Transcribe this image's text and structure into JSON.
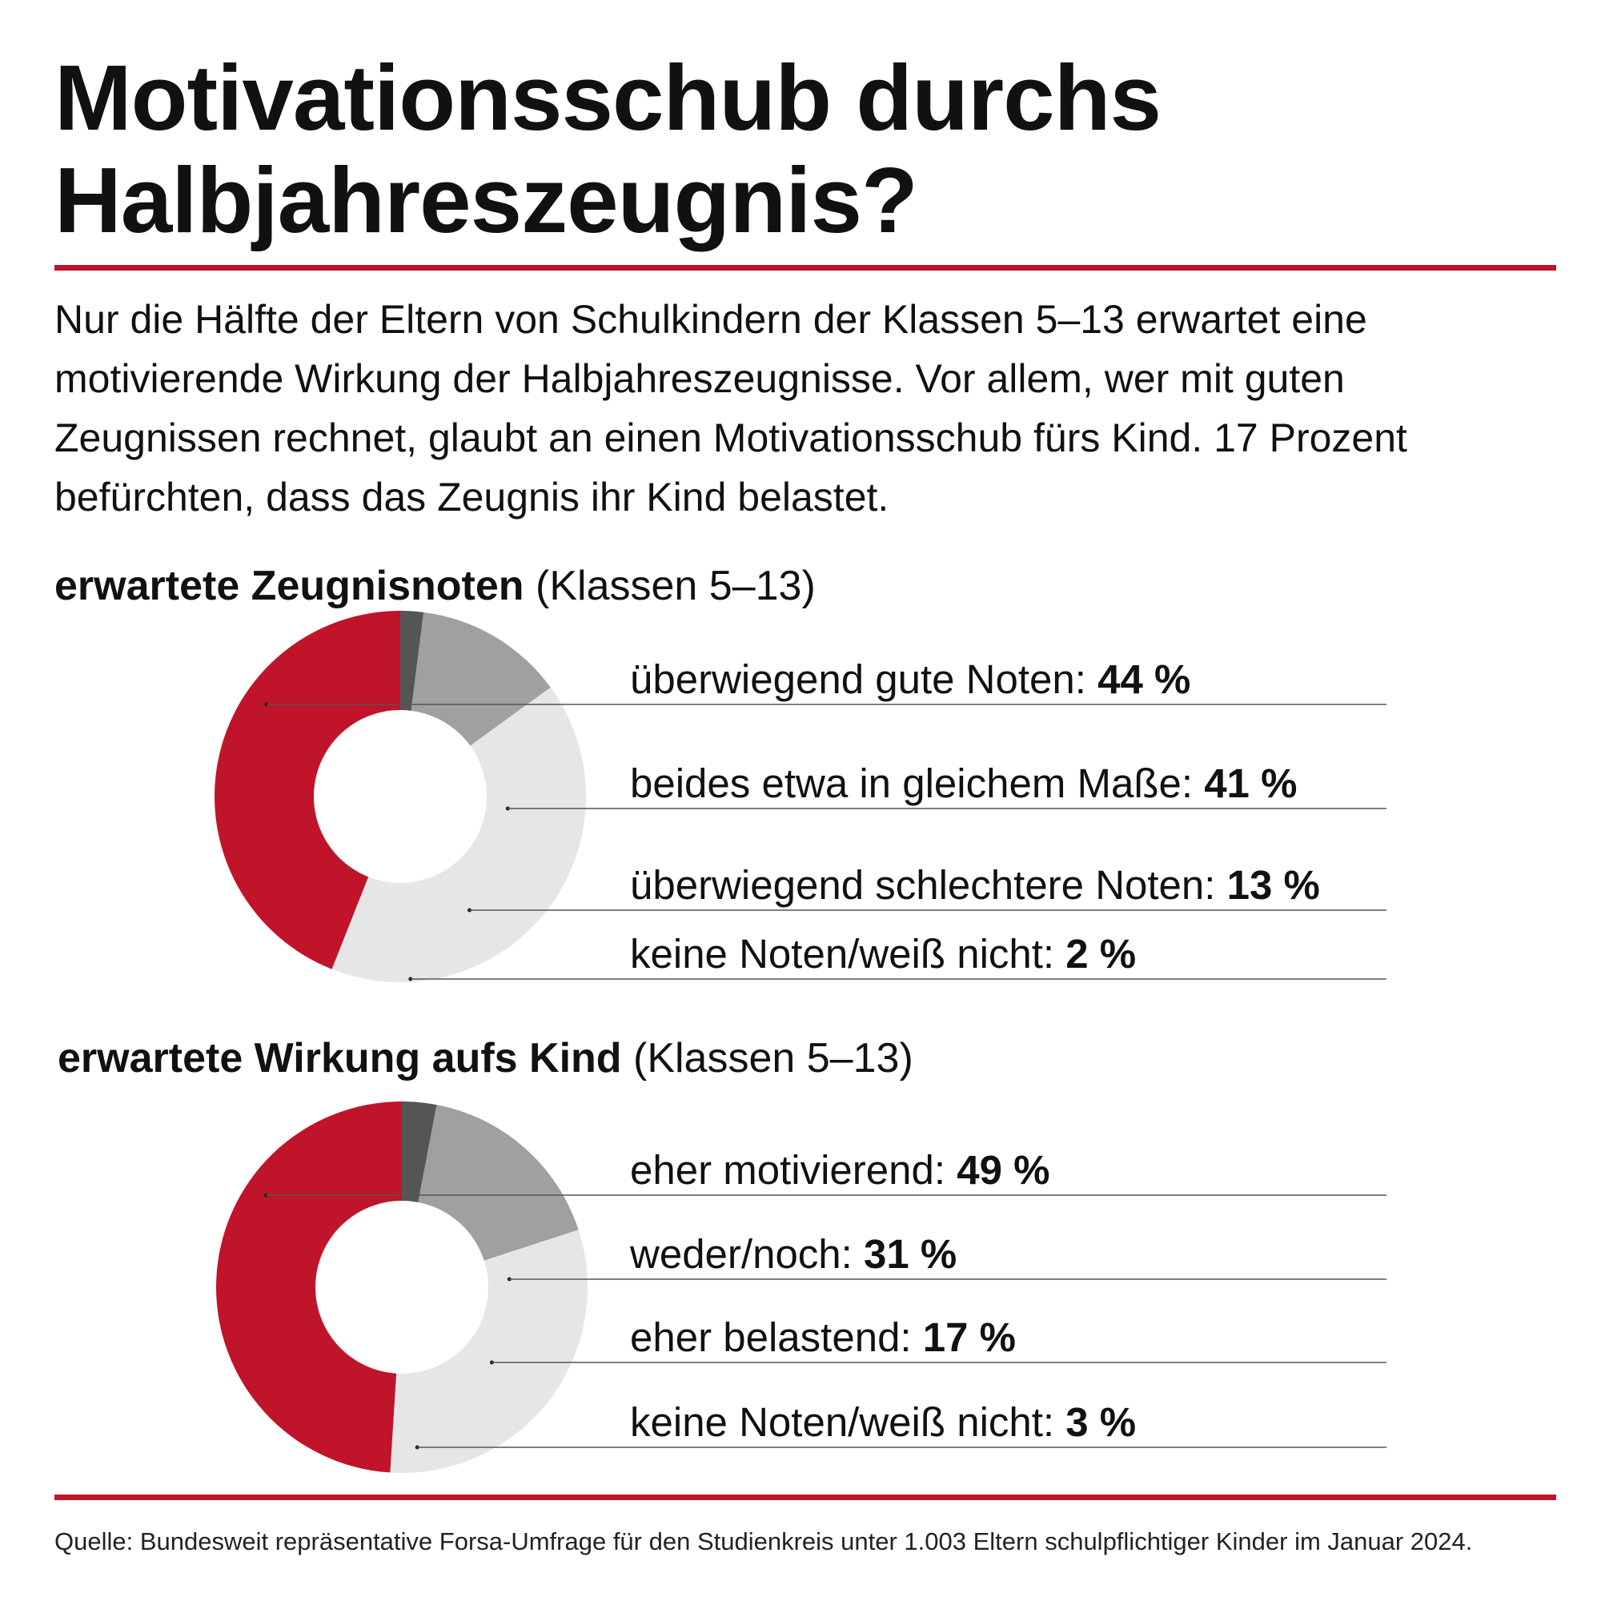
{
  "title": "Motivationsschub durchs Halbjahreszeugnis?",
  "intro": "Nur die Hälfte der Eltern von Schulkindern der Klassen 5–13 erwartet eine motivierende Wirkung der Halbjahreszeugnisse. Vor allem, wer mit guten Zeugnissen rechnet, glaubt an einen Motivationsschub fürs Kind. 17 Prozent befürchten, dass das Zeugnis ihr Kind belastet.",
  "source": "Quelle: Bundesweit repräsentative Forsa-Umfrage für den Studienkreis unter 1.003 Eltern schulpflichtiger Kinder im Januar 2024.",
  "colors": {
    "accent": "#c0142a",
    "light_gray": "#e6e6e6",
    "mid_gray": "#a0a0a0",
    "dark_gray": "#555555",
    "rule": "#c0142a"
  },
  "chart_data": [
    {
      "type": "pie",
      "title": "erwartete Zeugnisnoten",
      "subtitle": "(Klassen 5–13)",
      "unit": "%",
      "categories": [
        "überwiegend gute Noten",
        "beides etwa in gleichem Maße",
        "überwiegend schlechtere Noten",
        "keine Noten/weiß nicht"
      ],
      "values": [
        44,
        41,
        13,
        2
      ],
      "value_labels": [
        "44 %",
        "41 %",
        "13 %",
        "2 %"
      ],
      "colors": [
        "#c0142a",
        "#e6e6e6",
        "#a0a0a0",
        "#555555"
      ],
      "legend": "right"
    },
    {
      "type": "pie",
      "title": "erwartete Wirkung aufs Kind",
      "subtitle": "(Klassen 5–13)",
      "unit": "%",
      "categories": [
        "eher motivierend",
        "weder/noch",
        "eher belastend",
        "keine Noten/weiß nicht"
      ],
      "values": [
        49,
        31,
        17,
        3
      ],
      "value_labels": [
        "49 %",
        "31 %",
        "17 %",
        "3 %"
      ],
      "colors": [
        "#c0142a",
        "#e6e6e6",
        "#a0a0a0",
        "#555555"
      ],
      "legend": "right"
    }
  ]
}
